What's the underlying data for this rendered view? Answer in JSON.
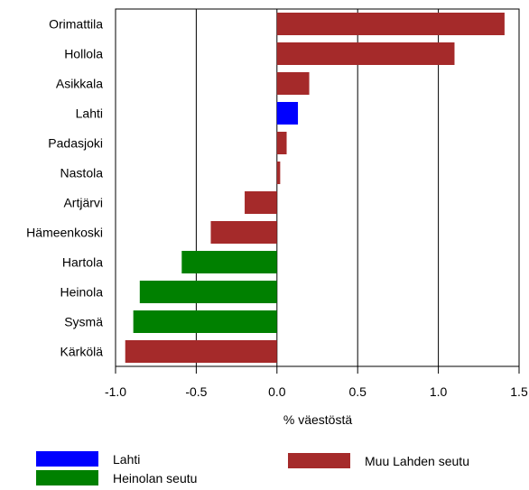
{
  "chart_data": {
    "type": "bar",
    "orientation": "horizontal",
    "xlabel": "% väestöstä",
    "xlim": [
      -1.0,
      1.5
    ],
    "xticks": [
      "-1.0",
      "-0.5",
      "0.0",
      "0.5",
      "1.0",
      "1.5"
    ],
    "xtick_values": [
      -1.0,
      -0.5,
      0.0,
      0.5,
      1.0,
      1.5
    ],
    "grid": "vertical",
    "legend_position": "bottom",
    "categories": [
      "Orimattila",
      "Hollola",
      "Asikkala",
      "Lahti",
      "Padasjoki",
      "Nastola",
      "Artjärvi",
      "Hämeenkoski",
      "Hartola",
      "Heinola",
      "Sysmä",
      "Kärkölä"
    ],
    "values": [
      1.41,
      1.1,
      0.2,
      0.13,
      0.06,
      0.02,
      -0.2,
      -0.41,
      -0.59,
      -0.85,
      -0.89,
      -0.94
    ],
    "groups": [
      "Muu Lahden seutu",
      "Muu Lahden seutu",
      "Muu Lahden seutu",
      "Lahti",
      "Muu Lahden seutu",
      "Muu Lahden seutu",
      "Muu Lahden seutu",
      "Muu Lahden seutu",
      "Heinolan seutu",
      "Heinolan seutu",
      "Heinolan seutu",
      "Muu Lahden seutu"
    ],
    "legend": [
      {
        "name": "Lahti",
        "color": "#0000ff"
      },
      {
        "name": "Heinolan seutu",
        "color": "#008000"
      },
      {
        "name": "Muu Lahden seutu",
        "color": "#a52a2a"
      }
    ]
  }
}
